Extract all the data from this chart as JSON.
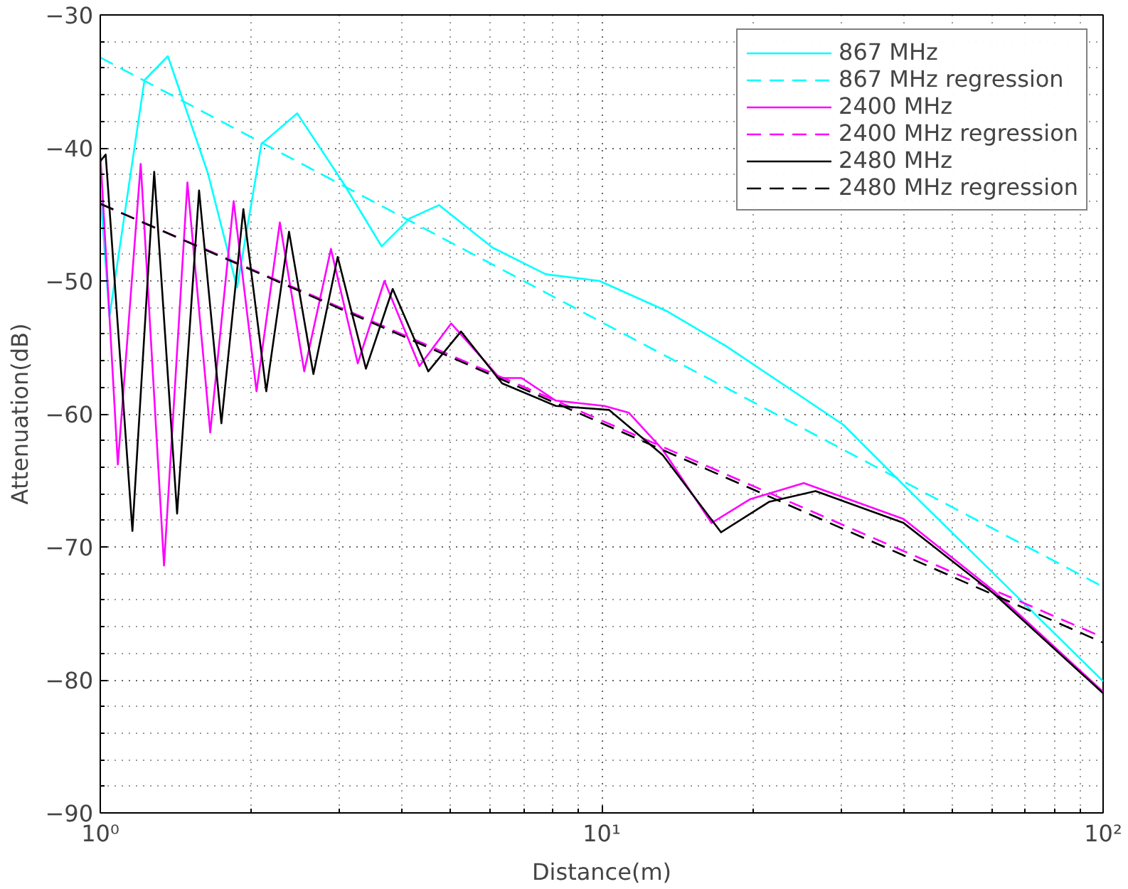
{
  "chart_data": {
    "type": "line",
    "xlabel": "Distance(m)",
    "ylabel": "Attenuation(dB)",
    "log": "x",
    "grid": true,
    "legend": "top right",
    "marker": "none",
    "xlim": [
      1,
      100
    ],
    "xticks": [
      {
        "value": 1,
        "label": "10⁰"
      },
      {
        "value": 10,
        "label": "10¹"
      },
      {
        "value": 100,
        "label": "10²"
      }
    ],
    "ylim": [
      -90,
      -30
    ],
    "yticks": [
      -90,
      -80,
      -70,
      -60,
      -50,
      -40,
      -30
    ],
    "series": [
      {
        "name": "867 MHz",
        "color": "#00ffff",
        "line_style": "solid",
        "x": [
          1,
          1.043,
          1.225,
          1.364,
          1.639,
          1.874,
          2.096,
          2.47,
          3.06,
          3.64,
          4.14,
          4.74,
          6.06,
          7.74,
          9.9,
          13.54,
          17.7,
          30.3,
          39.9,
          100
        ],
        "values": [
          -43.2,
          -52.7,
          -34.9,
          -33.1,
          -41.9,
          -50.5,
          -39.7,
          -37.4,
          -42.7,
          -47.4,
          -45.3,
          -44.3,
          -47.5,
          -49.5,
          -50.0,
          -52.3,
          -54.9,
          -60.8,
          -65.3,
          -80.1
        ]
      },
      {
        "name": "867 MHz regression",
        "color": "#00ffff",
        "line_style": "dashed",
        "x": [
          1,
          100
        ],
        "values": [
          -33.2,
          -73.0
        ]
      },
      {
        "name": "2400 MHz",
        "color": "#ff00ff",
        "line_style": "solid",
        "x": [
          1,
          1.084,
          1.204,
          1.34,
          1.492,
          1.657,
          1.845,
          2.049,
          2.281,
          2.551,
          2.884,
          3.262,
          3.687,
          4.33,
          5.01,
          6.26,
          6.92,
          8.1,
          10.12,
          11.32,
          13.24,
          16.56,
          19.8,
          25.3,
          40.0,
          60.5,
          100
        ],
        "values": [
          -40.4,
          -63.8,
          -41.2,
          -71.4,
          -42.6,
          -61.4,
          -44.0,
          -58.3,
          -45.6,
          -56.8,
          -47.6,
          -56.2,
          -50.0,
          -56.4,
          -53.2,
          -57.3,
          -57.3,
          -59.0,
          -59.4,
          -59.9,
          -62.7,
          -68.2,
          -66.4,
          -65.2,
          -67.9,
          -73.3,
          -80.9
        ]
      },
      {
        "name": "2400 MHz regression",
        "color": "#ff00ff",
        "line_style": "dashed",
        "x": [
          1,
          100
        ],
        "values": [
          -44.2,
          -76.8
        ]
      },
      {
        "name": "2480 MHz",
        "color": "#000000",
        "line_style": "solid",
        "x": [
          1,
          1.025,
          1.159,
          1.281,
          1.423,
          1.574,
          1.744,
          1.929,
          2.143,
          2.379,
          2.661,
          2.975,
          3.387,
          3.83,
          4.51,
          5.24,
          6.33,
          8.1,
          10.35,
          13.24,
          17.3,
          21.6,
          26.7,
          40.0,
          60.5,
          100
        ],
        "values": [
          -41.0,
          -40.5,
          -68.8,
          -41.8,
          -67.5,
          -43.2,
          -60.7,
          -44.6,
          -58.3,
          -46.3,
          -57.0,
          -48.2,
          -56.6,
          -50.6,
          -56.8,
          -53.8,
          -57.7,
          -59.4,
          -59.7,
          -63.1,
          -68.9,
          -66.6,
          -65.8,
          -68.2,
          -73.5,
          -81.0
        ]
      },
      {
        "name": "2480 MHz regression",
        "color": "#000000",
        "line_style": "dashed",
        "x": [
          1,
          100
        ],
        "values": [
          -44.2,
          -77.2
        ]
      }
    ]
  }
}
